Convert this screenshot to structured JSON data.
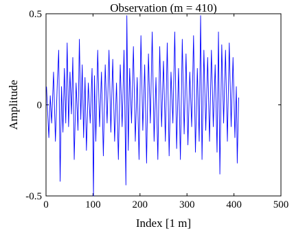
{
  "chart_data": {
    "type": "line",
    "title": "Observation (m = 410)",
    "xlabel": "Index [1 m]",
    "ylabel": "Amplitude",
    "xlim": [
      0,
      500
    ],
    "ylim": [
      -0.5,
      0.5
    ],
    "xticks": [
      0,
      100,
      200,
      300,
      400,
      500
    ],
    "yticks": [
      -0.5,
      0,
      0.5
    ],
    "xtick_labels": [
      "0",
      "100",
      "200",
      "300",
      "400",
      "500"
    ],
    "ytick_labels": [
      "-0.5",
      "0",
      "0.5"
    ],
    "grid": false,
    "legend": "none",
    "series": [
      {
        "color": "#0000ff",
        "x": [
          1,
          6,
          9,
          12,
          16,
          20,
          24,
          27,
          30,
          33,
          36,
          39,
          42,
          45,
          48,
          51,
          54,
          57,
          60,
          64,
          68,
          71,
          74,
          77,
          80,
          83,
          86,
          90,
          94,
          98,
          101,
          103,
          106,
          110,
          114,
          118,
          122,
          126,
          130,
          134,
          138,
          142,
          146,
          150,
          154,
          158,
          162,
          166,
          170,
          172,
          175,
          178,
          182,
          186,
          190,
          194,
          198,
          202,
          206,
          210,
          214,
          218,
          222,
          226,
          230,
          234,
          238,
          242,
          246,
          250,
          254,
          258,
          262,
          266,
          270,
          274,
          278,
          282,
          286,
          290,
          294,
          298,
          302,
          306,
          310,
          314,
          318,
          322,
          326,
          329,
          332,
          336,
          340,
          344,
          348,
          352,
          356,
          360,
          364,
          367,
          370,
          374,
          378,
          382,
          386,
          390,
          394,
          398,
          402,
          405,
          407,
          410
        ],
        "y": [
          0.1,
          -0.18,
          0.05,
          -0.1,
          0.18,
          -0.2,
          0.12,
          0.3,
          -0.42,
          0.1,
          -0.15,
          0.2,
          -0.1,
          0.34,
          -0.12,
          0.18,
          -0.05,
          0.26,
          -0.3,
          0.12,
          -0.14,
          0.36,
          -0.08,
          0.22,
          -0.18,
          0.15,
          -0.25,
          0.12,
          -0.1,
          0.2,
          -0.5,
          0.16,
          -0.2,
          0.3,
          -0.12,
          0.18,
          -0.28,
          0.22,
          -0.1,
          0.3,
          -0.15,
          0.25,
          -0.2,
          0.12,
          -0.3,
          0.22,
          -0.12,
          0.3,
          -0.44,
          0.49,
          -0.25,
          0.2,
          -0.1,
          0.32,
          -0.2,
          0.15,
          -0.3,
          0.38,
          -0.14,
          0.22,
          -0.32,
          0.28,
          -0.1,
          0.4,
          -0.2,
          0.15,
          -0.3,
          0.32,
          -0.12,
          0.24,
          -0.2,
          0.34,
          -0.28,
          0.18,
          -0.1,
          0.4,
          -0.24,
          0.2,
          -0.3,
          0.36,
          -0.16,
          0.28,
          -0.22,
          0.18,
          -0.12,
          0.38,
          -0.26,
          0.2,
          -0.2,
          0.49,
          -0.3,
          0.3,
          -0.14,
          0.26,
          -0.2,
          0.3,
          -0.12,
          0.22,
          -0.26,
          0.4,
          -0.38,
          0.33,
          -0.1,
          0.3,
          -0.2,
          0.34,
          -0.12,
          0.26,
          -0.18,
          0.1,
          -0.32,
          0.04
        ]
      }
    ]
  }
}
